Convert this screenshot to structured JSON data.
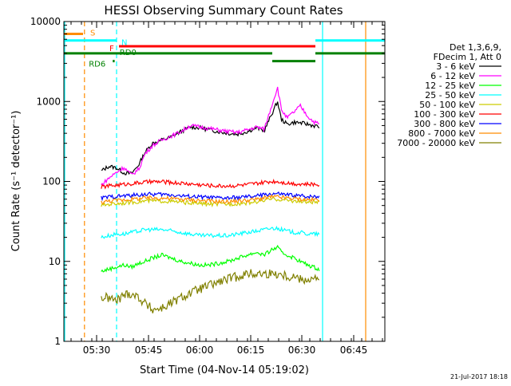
{
  "chart_data": {
    "type": "line",
    "title": "HESSI Observing Summary Count Rates",
    "xlabel": "Start Time (04-Nov-14 05:19:02)",
    "ylabel": "Count Rate (s⁻¹ detector⁻¹)",
    "yscale": "log",
    "ylim": [
      1,
      10000
    ],
    "xlim_minutes_after_start": [
      0,
      67
    ],
    "y_ticks": [
      {
        "value": 1,
        "label": "1"
      },
      {
        "value": 10,
        "label": "10"
      },
      {
        "value": 100,
        "label": "100"
      },
      {
        "value": 1000,
        "label": "1000"
      },
      {
        "value": 10000,
        "label": "10000"
      }
    ],
    "x_ticks": [
      {
        "t": 10.97,
        "label": "05:30"
      },
      {
        "t": 25.97,
        "label": "05:45"
      },
      {
        "t": 40.97,
        "label": "06:00"
      },
      {
        "t": 55.97,
        "label": "06:15"
      },
      {
        "t": 70.97,
        "label": "06:30"
      },
      {
        "t": 85.97,
        "label": "06:45"
      }
    ],
    "legend_header": [
      "Det 1,3,6,9,",
      "FDecim 1, Att 0"
    ],
    "legend_position": "right",
    "series": [
      {
        "name": "3 - 6 keV",
        "color": "#000000",
        "points": [
          [
            8,
            135
          ],
          [
            12,
            155
          ],
          [
            16,
            148
          ],
          [
            20,
            128
          ],
          [
            24,
            125
          ],
          [
            28,
            165
          ],
          [
            31,
            230
          ],
          [
            35,
            300
          ],
          [
            40,
            330
          ],
          [
            45,
            360
          ],
          [
            50,
            420
          ],
          [
            55,
            480
          ],
          [
            60,
            470
          ],
          [
            65,
            440
          ],
          [
            70,
            420
          ],
          [
            75,
            400
          ],
          [
            80,
            390
          ],
          [
            85,
            420
          ],
          [
            90,
            470
          ],
          [
            94,
            430
          ],
          [
            98,
            700
          ],
          [
            101,
            1000
          ],
          [
            103,
            600
          ],
          [
            106,
            520
          ],
          [
            110,
            550
          ],
          [
            113,
            540
          ],
          [
            117,
            520
          ],
          [
            120,
            500
          ],
          [
            123,
            480
          ]
        ]
      },
      {
        "name": "6 - 12 keV",
        "color": "#ff00ff",
        "points": [
          [
            8,
            90
          ],
          [
            12,
            110
          ],
          [
            16,
            130
          ],
          [
            20,
            150
          ],
          [
            24,
            120
          ],
          [
            28,
            145
          ],
          [
            31,
            220
          ],
          [
            35,
            280
          ],
          [
            40,
            330
          ],
          [
            45,
            370
          ],
          [
            50,
            420
          ],
          [
            55,
            500
          ],
          [
            60,
            480
          ],
          [
            65,
            460
          ],
          [
            70,
            440
          ],
          [
            75,
            420
          ],
          [
            80,
            410
          ],
          [
            85,
            440
          ],
          [
            90,
            480
          ],
          [
            94,
            450
          ],
          [
            98,
            900
          ],
          [
            101,
            1500
          ],
          [
            103,
            800
          ],
          [
            106,
            620
          ],
          [
            110,
            750
          ],
          [
            113,
            880
          ],
          [
            117,
            650
          ],
          [
            120,
            560
          ],
          [
            123,
            520
          ]
        ]
      },
      {
        "name": "12 - 25 keV",
        "color": "#00ff00",
        "points": [
          [
            8,
            7.5
          ],
          [
            12,
            8
          ],
          [
            16,
            8.5
          ],
          [
            20,
            9
          ],
          [
            24,
            8.5
          ],
          [
            28,
            9.5
          ],
          [
            31,
            10
          ],
          [
            35,
            11
          ],
          [
            40,
            12
          ],
          [
            45,
            11
          ],
          [
            50,
            10
          ],
          [
            55,
            9.5
          ],
          [
            60,
            9
          ],
          [
            65,
            9
          ],
          [
            70,
            9.5
          ],
          [
            75,
            10
          ],
          [
            80,
            11
          ],
          [
            85,
            12
          ],
          [
            90,
            13
          ],
          [
            94,
            12
          ],
          [
            98,
            14
          ],
          [
            101,
            15
          ],
          [
            103,
            13
          ],
          [
            106,
            12
          ],
          [
            110,
            11
          ],
          [
            113,
            10
          ],
          [
            117,
            9
          ],
          [
            120,
            8.5
          ],
          [
            123,
            8
          ]
        ]
      },
      {
        "name": "25 - 50 keV",
        "color": "#00ffff",
        "points": [
          [
            8,
            20
          ],
          [
            12,
            21
          ],
          [
            16,
            22
          ],
          [
            20,
            22
          ],
          [
            24,
            23
          ],
          [
            28,
            24
          ],
          [
            31,
            25
          ],
          [
            35,
            25
          ],
          [
            40,
            25
          ],
          [
            45,
            24
          ],
          [
            50,
            23
          ],
          [
            55,
            22
          ],
          [
            60,
            21
          ],
          [
            65,
            21
          ],
          [
            70,
            21
          ],
          [
            75,
            21
          ],
          [
            80,
            22
          ],
          [
            85,
            23
          ],
          [
            90,
            24
          ],
          [
            94,
            25
          ],
          [
            98,
            26
          ],
          [
            101,
            26
          ],
          [
            103,
            25
          ],
          [
            106,
            24
          ],
          [
            110,
            23
          ],
          [
            113,
            23
          ],
          [
            117,
            22
          ],
          [
            120,
            22
          ],
          [
            123,
            22
          ]
        ]
      },
      {
        "name": "50 - 100 keV",
        "color": "#cccc00",
        "points": [
          [
            8,
            50
          ],
          [
            12,
            52
          ],
          [
            16,
            53
          ],
          [
            20,
            54
          ],
          [
            24,
            55
          ],
          [
            28,
            56
          ],
          [
            31,
            57
          ],
          [
            35,
            57
          ],
          [
            40,
            57
          ],
          [
            45,
            56
          ],
          [
            50,
            55
          ],
          [
            55,
            54
          ],
          [
            60,
            53
          ],
          [
            65,
            52
          ],
          [
            70,
            52
          ],
          [
            75,
            52
          ],
          [
            80,
            53
          ],
          [
            85,
            54
          ],
          [
            90,
            56
          ],
          [
            94,
            58
          ],
          [
            98,
            60
          ],
          [
            101,
            60
          ],
          [
            103,
            59
          ],
          [
            106,
            58
          ],
          [
            110,
            57
          ],
          [
            113,
            56
          ],
          [
            117,
            55
          ],
          [
            120,
            55
          ],
          [
            123,
            55
          ]
        ]
      },
      {
        "name": "100 - 300 keV",
        "color": "#ff0000",
        "points": [
          [
            8,
            85
          ],
          [
            12,
            88
          ],
          [
            16,
            90
          ],
          [
            20,
            92
          ],
          [
            24,
            94
          ],
          [
            28,
            96
          ],
          [
            31,
            98
          ],
          [
            35,
            99
          ],
          [
            40,
            99
          ],
          [
            45,
            97
          ],
          [
            50,
            95
          ],
          [
            55,
            93
          ],
          [
            60,
            91
          ],
          [
            65,
            89
          ],
          [
            70,
            88
          ],
          [
            75,
            88
          ],
          [
            80,
            89
          ],
          [
            85,
            91
          ],
          [
            90,
            94
          ],
          [
            94,
            97
          ],
          [
            98,
            100
          ],
          [
            101,
            100
          ],
          [
            103,
            98
          ],
          [
            106,
            96
          ],
          [
            110,
            94
          ],
          [
            113,
            93
          ],
          [
            117,
            92
          ],
          [
            120,
            92
          ],
          [
            123,
            92
          ]
        ]
      },
      {
        "name": "300 - 800 keV",
        "color": "#0000ff",
        "points": [
          [
            8,
            62
          ],
          [
            12,
            64
          ],
          [
            16,
            65
          ],
          [
            20,
            66
          ],
          [
            24,
            67
          ],
          [
            28,
            68
          ],
          [
            31,
            69
          ],
          [
            35,
            69
          ],
          [
            40,
            69
          ],
          [
            45,
            68
          ],
          [
            50,
            66
          ],
          [
            55,
            65
          ],
          [
            60,
            64
          ],
          [
            65,
            63
          ],
          [
            70,
            62
          ],
          [
            75,
            62
          ],
          [
            80,
            63
          ],
          [
            85,
            64
          ],
          [
            90,
            66
          ],
          [
            94,
            68
          ],
          [
            98,
            70
          ],
          [
            101,
            70
          ],
          [
            103,
            69
          ],
          [
            106,
            68
          ],
          [
            110,
            67
          ],
          [
            113,
            66
          ],
          [
            117,
            65
          ],
          [
            120,
            65
          ],
          [
            123,
            65
          ]
        ]
      },
      {
        "name": "800 - 7000 keV",
        "color": "#ff8c00",
        "points": [
          [
            8,
            55
          ],
          [
            12,
            57
          ],
          [
            16,
            58
          ],
          [
            20,
            59
          ],
          [
            24,
            60
          ],
          [
            28,
            61
          ],
          [
            31,
            62
          ],
          [
            35,
            62
          ],
          [
            40,
            62
          ],
          [
            45,
            61
          ],
          [
            50,
            60
          ],
          [
            55,
            59
          ],
          [
            60,
            58
          ],
          [
            65,
            57
          ],
          [
            70,
            56
          ],
          [
            75,
            56
          ],
          [
            80,
            57
          ],
          [
            85,
            58
          ],
          [
            90,
            60
          ],
          [
            94,
            62
          ],
          [
            98,
            64
          ],
          [
            101,
            64
          ],
          [
            103,
            63
          ],
          [
            106,
            62
          ],
          [
            110,
            61
          ],
          [
            113,
            60
          ],
          [
            117,
            59
          ],
          [
            120,
            59
          ],
          [
            123,
            59
          ]
        ]
      },
      {
        "name": "7000 - 20000 keV",
        "color": "#808000",
        "points": [
          [
            8,
            3.5
          ],
          [
            12,
            3.5
          ],
          [
            16,
            3.2
          ],
          [
            20,
            3.8
          ],
          [
            24,
            4.0
          ],
          [
            28,
            3.5
          ],
          [
            31,
            3.0
          ],
          [
            35,
            2.5
          ],
          [
            40,
            2.6
          ],
          [
            45,
            3.0
          ],
          [
            50,
            3.5
          ],
          [
            55,
            4.0
          ],
          [
            60,
            4.5
          ],
          [
            65,
            5.0
          ],
          [
            70,
            5.5
          ],
          [
            75,
            6.0
          ],
          [
            80,
            6.5
          ],
          [
            85,
            7.0
          ],
          [
            90,
            7.0
          ],
          [
            94,
            7.0
          ],
          [
            98,
            7.0
          ],
          [
            101,
            7.0
          ],
          [
            103,
            7.0
          ],
          [
            106,
            6.5
          ],
          [
            110,
            6.5
          ],
          [
            113,
            6.0
          ],
          [
            117,
            6.0
          ],
          [
            120,
            6.0
          ],
          [
            123,
            6.0
          ]
        ]
      }
    ],
    "flags": [
      {
        "label": "S",
        "color": "#ff8c00",
        "y": 7000,
        "x_start": 0,
        "x_end": 3.5
      },
      {
        "label": "N",
        "color": "#00ffff",
        "y": 5800,
        "x_start": 0,
        "x_end": 11.0
      },
      {
        "label": "F",
        "color": "#ff0000",
        "y": 4900,
        "x_start": 11.5,
        "x_end": 54.0
      },
      {
        "label": "RD0",
        "color": "#008000",
        "y": 4000,
        "x_start": 0,
        "x_end": 48.0
      },
      {
        "label": "RD6",
        "color": "#008000",
        "y": 3200,
        "x_start": 10.5,
        "x_end": 11.0
      }
    ],
    "vertical_markers": [
      {
        "t": 4.3,
        "color": "#ff8c00",
        "style": "dashed"
      },
      {
        "t": 11.0,
        "color": "#00ffff",
        "style": "dashed"
      },
      {
        "t": 54.0,
        "color": "#00ffff",
        "style": "solid"
      },
      {
        "t": 63.0,
        "color": "#ff8c00",
        "style": "solid"
      }
    ],
    "footer_date": "21-Jul-2017 18:18"
  }
}
